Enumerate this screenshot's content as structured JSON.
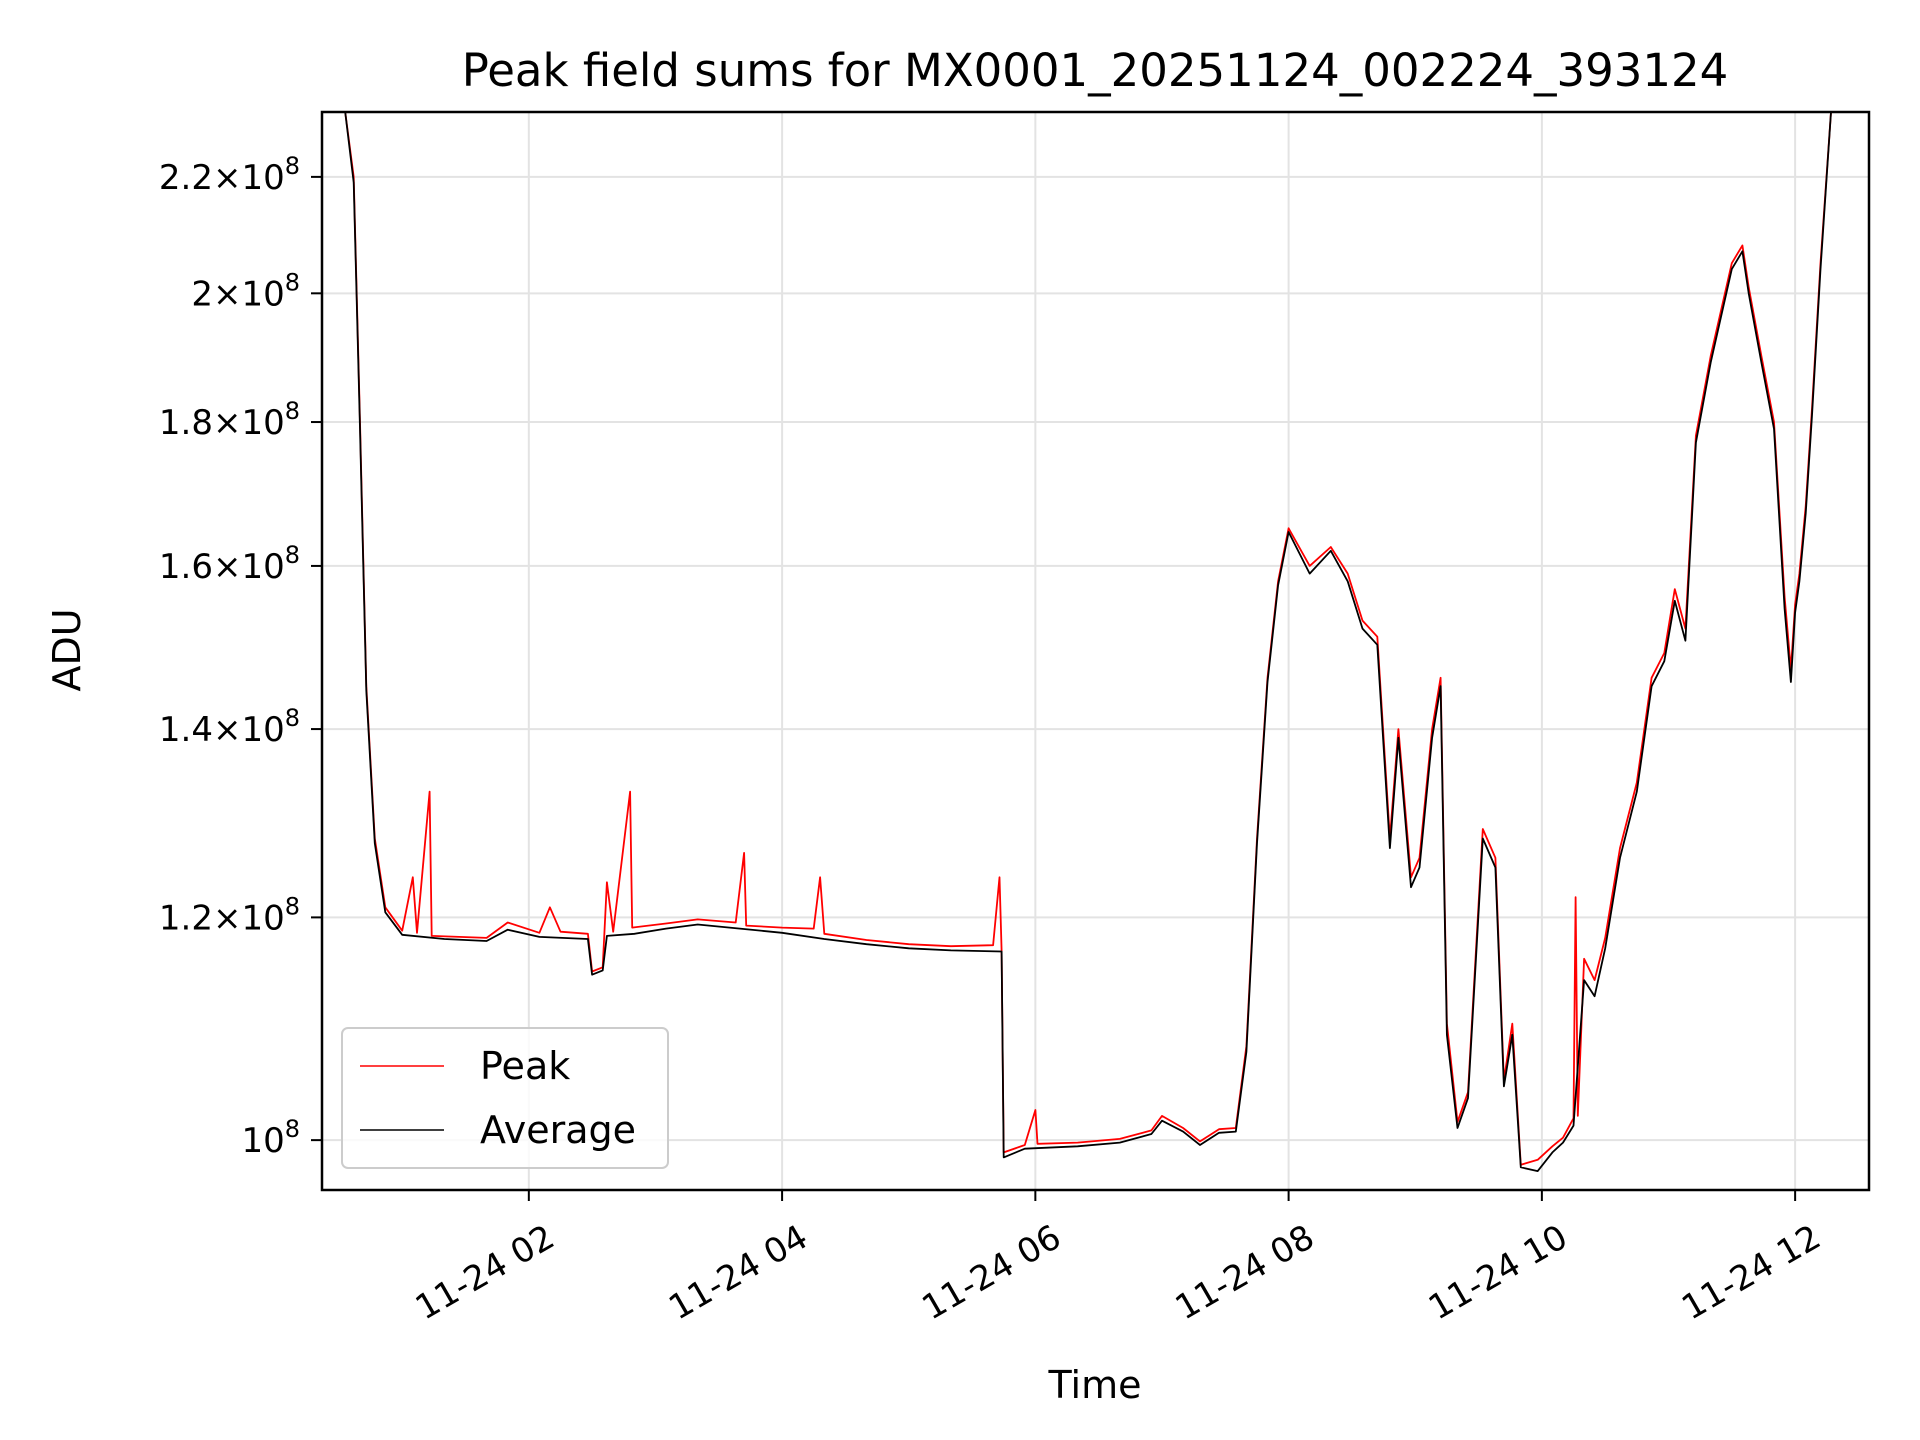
{
  "chart_data": {
    "type": "line",
    "title": "Peak field sums for MX0001_20251124_002224_393124",
    "xlabel": "Time",
    "ylabel": "ADU",
    "yscale": "log",
    "xlim": [
      "2025-11-24 00:22",
      "2025-11-24 12:35"
    ],
    "ylim": [
      96000000,
      232000000
    ],
    "grid": true,
    "legend_position": "lower-left",
    "x_ticks": [
      {
        "t": "2025-11-24 02:00",
        "label": "11-24 02"
      },
      {
        "t": "2025-11-24 04:00",
        "label": "11-24 04"
      },
      {
        "t": "2025-11-24 06:00",
        "label": "11-24 06"
      },
      {
        "t": "2025-11-24 08:00",
        "label": "11-24 08"
      },
      {
        "t": "2025-11-24 10:00",
        "label": "11-24 10"
      },
      {
        "t": "2025-11-24 12:00",
        "label": "11-24 12"
      }
    ],
    "y_ticks": [
      {
        "v": 100000000,
        "mant": "",
        "exp": "8"
      },
      {
        "v": 120000000,
        "mant": "1.2",
        "exp": "8"
      },
      {
        "v": 140000000,
        "mant": "1.4",
        "exp": "8"
      },
      {
        "v": 160000000,
        "mant": "1.6",
        "exp": "8"
      },
      {
        "v": 180000000,
        "mant": "1.8",
        "exp": "8"
      },
      {
        "v": 200000000,
        "mant": "2",
        "exp": "8"
      },
      {
        "v": 220000000,
        "mant": "2.2",
        "exp": "8"
      }
    ],
    "series": [
      {
        "name": "Peak",
        "color": "#ff0000",
        "points": [
          [
            "2025-11-24 00:22",
            232000000
          ],
          [
            "2025-11-24 00:33",
            232000000
          ],
          [
            "2025-11-24 00:37",
            220000000
          ],
          [
            "2025-11-24 00:40",
            180000000
          ],
          [
            "2025-11-24 00:43",
            145000000
          ],
          [
            "2025-11-24 00:47",
            128000000
          ],
          [
            "2025-11-24 00:52",
            121000000
          ],
          [
            "2025-11-24 01:00",
            118700000
          ],
          [
            "2025-11-24 01:05",
            124000000
          ],
          [
            "2025-11-24 01:07",
            118500000
          ],
          [
            "2025-11-24 01:13",
            133000000
          ],
          [
            "2025-11-24 01:14",
            118200000
          ],
          [
            "2025-11-24 01:40",
            118000000
          ],
          [
            "2025-11-24 01:50",
            119500000
          ],
          [
            "2025-11-24 02:05",
            118500000
          ],
          [
            "2025-11-24 02:10",
            121000000
          ],
          [
            "2025-11-24 02:15",
            118600000
          ],
          [
            "2025-11-24 02:28",
            118400000
          ],
          [
            "2025-11-24 02:30",
            114800000
          ],
          [
            "2025-11-24 02:35",
            115200000
          ],
          [
            "2025-11-24 02:37",
            123500000
          ],
          [
            "2025-11-24 02:40",
            118600000
          ],
          [
            "2025-11-24 02:48",
            133000000
          ],
          [
            "2025-11-24 02:49",
            119000000
          ],
          [
            "2025-11-24 03:05",
            119400000
          ],
          [
            "2025-11-24 03:20",
            119800000
          ],
          [
            "2025-11-24 03:38",
            119500000
          ],
          [
            "2025-11-24 03:42",
            126500000
          ],
          [
            "2025-11-24 03:43",
            119200000
          ],
          [
            "2025-11-24 04:00",
            119000000
          ],
          [
            "2025-11-24 04:15",
            118900000
          ],
          [
            "2025-11-24 04:18",
            124000000
          ],
          [
            "2025-11-24 04:20",
            118400000
          ],
          [
            "2025-11-24 04:40",
            117800000
          ],
          [
            "2025-11-24 05:00",
            117400000
          ],
          [
            "2025-11-24 05:20",
            117200000
          ],
          [
            "2025-11-24 05:40",
            117300000
          ],
          [
            "2025-11-24 05:43",
            124000000
          ],
          [
            "2025-11-24 05:44",
            116800000
          ],
          [
            "2025-11-24 05:45",
            99000000
          ],
          [
            "2025-11-24 05:55",
            99600000
          ],
          [
            "2025-11-24 06:00",
            102500000
          ],
          [
            "2025-11-24 06:01",
            99700000
          ],
          [
            "2025-11-24 06:20",
            99800000
          ],
          [
            "2025-11-24 06:40",
            100100000
          ],
          [
            "2025-11-24 06:55",
            100800000
          ],
          [
            "2025-11-24 07:00",
            102000000
          ],
          [
            "2025-11-24 07:10",
            101000000
          ],
          [
            "2025-11-24 07:18",
            99900000
          ],
          [
            "2025-11-24 07:27",
            100900000
          ],
          [
            "2025-11-24 07:35",
            101000000
          ],
          [
            "2025-11-24 07:40",
            108000000
          ],
          [
            "2025-11-24 07:45",
            128000000
          ],
          [
            "2025-11-24 07:50",
            146000000
          ],
          [
            "2025-11-24 07:55",
            158000000
          ],
          [
            "2025-11-24 08:00",
            165000000
          ],
          [
            "2025-11-24 08:10",
            160000000
          ],
          [
            "2025-11-24 08:20",
            162500000
          ],
          [
            "2025-11-24 08:28",
            159000000
          ],
          [
            "2025-11-24 08:35",
            153000000
          ],
          [
            "2025-11-24 08:42",
            151000000
          ],
          [
            "2025-11-24 08:48",
            128000000
          ],
          [
            "2025-11-24 08:52",
            140000000
          ],
          [
            "2025-11-24 08:58",
            124000000
          ],
          [
            "2025-11-24 09:02",
            126000000
          ],
          [
            "2025-11-24 09:08",
            140000000
          ],
          [
            "2025-11-24 09:12",
            146000000
          ],
          [
            "2025-11-24 09:15",
            110000000
          ],
          [
            "2025-11-24 09:20",
            101500000
          ],
          [
            "2025-11-24 09:25",
            104000000
          ],
          [
            "2025-11-24 09:32",
            129000000
          ],
          [
            "2025-11-24 09:38",
            126000000
          ],
          [
            "2025-11-24 09:42",
            105000000
          ],
          [
            "2025-11-24 09:46",
            110000000
          ],
          [
            "2025-11-24 09:50",
            98000000
          ],
          [
            "2025-11-24 09:58",
            98400000
          ],
          [
            "2025-11-24 10:05",
            99500000
          ],
          [
            "2025-11-24 10:10",
            100200000
          ],
          [
            "2025-11-24 10:15",
            101800000
          ],
          [
            "2025-11-24 10:16",
            122000000
          ],
          [
            "2025-11-24 10:17",
            102000000
          ],
          [
            "2025-11-24 10:20",
            116000000
          ],
          [
            "2025-11-24 10:25",
            114000000
          ],
          [
            "2025-11-24 10:30",
            118000000
          ],
          [
            "2025-11-24 10:37",
            127000000
          ],
          [
            "2025-11-24 10:45",
            134000000
          ],
          [
            "2025-11-24 10:52",
            146000000
          ],
          [
            "2025-11-24 10:58",
            149000000
          ],
          [
            "2025-11-24 11:03",
            157000000
          ],
          [
            "2025-11-24 11:08",
            152000000
          ],
          [
            "2025-11-24 11:13",
            178000000
          ],
          [
            "2025-11-24 11:20",
            190000000
          ],
          [
            "2025-11-24 11:30",
            205000000
          ],
          [
            "2025-11-24 11:35",
            208000000
          ],
          [
            "2025-11-24 11:38",
            201000000
          ],
          [
            "2025-11-24 11:44",
            190000000
          ],
          [
            "2025-11-24 11:50",
            180000000
          ],
          [
            "2025-11-24 11:55",
            156000000
          ],
          [
            "2025-11-24 11:58",
            147000000
          ],
          [
            "2025-11-24 12:00",
            155000000
          ],
          [
            "2025-11-24 12:02",
            159000000
          ],
          [
            "2025-11-24 12:05",
            168000000
          ],
          [
            "2025-11-24 12:08",
            182000000
          ],
          [
            "2025-11-24 12:12",
            205000000
          ],
          [
            "2025-11-24 12:17",
            232000000
          ],
          [
            "2025-11-24 12:35",
            232000000
          ]
        ]
      },
      {
        "name": "Average",
        "color": "#000000",
        "points": [
          [
            "2025-11-24 00:22",
            232000000
          ],
          [
            "2025-11-24 00:33",
            232000000
          ],
          [
            "2025-11-24 00:37",
            219000000
          ],
          [
            "2025-11-24 00:40",
            179000000
          ],
          [
            "2025-11-24 00:43",
            144500000
          ],
          [
            "2025-11-24 00:47",
            127500000
          ],
          [
            "2025-11-24 00:52",
            120500000
          ],
          [
            "2025-11-24 01:00",
            118300000
          ],
          [
            "2025-11-24 01:20",
            117900000
          ],
          [
            "2025-11-24 01:40",
            117700000
          ],
          [
            "2025-11-24 01:50",
            118800000
          ],
          [
            "2025-11-24 02:05",
            118100000
          ],
          [
            "2025-11-24 02:28",
            117900000
          ],
          [
            "2025-11-24 02:30",
            114500000
          ],
          [
            "2025-11-24 02:35",
            114900000
          ],
          [
            "2025-11-24 02:37",
            118200000
          ],
          [
            "2025-11-24 02:50",
            118400000
          ],
          [
            "2025-11-24 03:05",
            118900000
          ],
          [
            "2025-11-24 03:20",
            119300000
          ],
          [
            "2025-11-24 03:40",
            118900000
          ],
          [
            "2025-11-24 04:00",
            118500000
          ],
          [
            "2025-11-24 04:20",
            117900000
          ],
          [
            "2025-11-24 04:40",
            117400000
          ],
          [
            "2025-11-24 05:00",
            117000000
          ],
          [
            "2025-11-24 05:20",
            116800000
          ],
          [
            "2025-11-24 05:44",
            116700000
          ],
          [
            "2025-11-24 05:45",
            98600000
          ],
          [
            "2025-11-24 05:55",
            99300000
          ],
          [
            "2025-11-24 06:20",
            99500000
          ],
          [
            "2025-11-24 06:40",
            99800000
          ],
          [
            "2025-11-24 06:55",
            100500000
          ],
          [
            "2025-11-24 07:00",
            101600000
          ],
          [
            "2025-11-24 07:10",
            100700000
          ],
          [
            "2025-11-24 07:18",
            99600000
          ],
          [
            "2025-11-24 07:27",
            100600000
          ],
          [
            "2025-11-24 07:35",
            100700000
          ],
          [
            "2025-11-24 07:40",
            107500000
          ],
          [
            "2025-11-24 07:45",
            127500000
          ],
          [
            "2025-11-24 07:50",
            145500000
          ],
          [
            "2025-11-24 07:55",
            157500000
          ],
          [
            "2025-11-24 08:00",
            164500000
          ],
          [
            "2025-11-24 08:10",
            159000000
          ],
          [
            "2025-11-24 08:20",
            162000000
          ],
          [
            "2025-11-24 08:28",
            158000000
          ],
          [
            "2025-11-24 08:35",
            152000000
          ],
          [
            "2025-11-24 08:42",
            150000000
          ],
          [
            "2025-11-24 08:48",
            127000000
          ],
          [
            "2025-11-24 08:52",
            139000000
          ],
          [
            "2025-11-24 08:58",
            123000000
          ],
          [
            "2025-11-24 09:02",
            125000000
          ],
          [
            "2025-11-24 09:08",
            139000000
          ],
          [
            "2025-11-24 09:12",
            145000000
          ],
          [
            "2025-11-24 09:15",
            109000000
          ],
          [
            "2025-11-24 09:20",
            101000000
          ],
          [
            "2025-11-24 09:25",
            103500000
          ],
          [
            "2025-11-24 09:32",
            128000000
          ],
          [
            "2025-11-24 09:38",
            125000000
          ],
          [
            "2025-11-24 09:42",
            104500000
          ],
          [
            "2025-11-24 09:46",
            109000000
          ],
          [
            "2025-11-24 09:50",
            97800000
          ],
          [
            "2025-11-24 09:58",
            97500000
          ],
          [
            "2025-11-24 10:05",
            99000000
          ],
          [
            "2025-11-24 10:10",
            99800000
          ],
          [
            "2025-11-24 10:15",
            101200000
          ],
          [
            "2025-11-24 10:20",
            114000000
          ],
          [
            "2025-11-24 10:25",
            112500000
          ],
          [
            "2025-11-24 10:30",
            117000000
          ],
          [
            "2025-11-24 10:37",
            126000000
          ],
          [
            "2025-11-24 10:45",
            133000000
          ],
          [
            "2025-11-24 10:52",
            145000000
          ],
          [
            "2025-11-24 10:58",
            148000000
          ],
          [
            "2025-11-24 11:03",
            155500000
          ],
          [
            "2025-11-24 11:08",
            150500000
          ],
          [
            "2025-11-24 11:13",
            177000000
          ],
          [
            "2025-11-24 11:20",
            189000000
          ],
          [
            "2025-11-24 11:30",
            204000000
          ],
          [
            "2025-11-24 11:35",
            207000000
          ],
          [
            "2025-11-24 11:38",
            200000000
          ],
          [
            "2025-11-24 11:44",
            189000000
          ],
          [
            "2025-11-24 11:50",
            179000000
          ],
          [
            "2025-11-24 11:55",
            154500000
          ],
          [
            "2025-11-24 11:58",
            145500000
          ],
          [
            "2025-11-24 12:00",
            154000000
          ],
          [
            "2025-11-24 12:02",
            158000000
          ],
          [
            "2025-11-24 12:05",
            167000000
          ],
          [
            "2025-11-24 12:08",
            181000000
          ],
          [
            "2025-11-24 12:12",
            204000000
          ],
          [
            "2025-11-24 12:17",
            232000000
          ],
          [
            "2025-11-24 12:35",
            232000000
          ]
        ]
      }
    ]
  }
}
